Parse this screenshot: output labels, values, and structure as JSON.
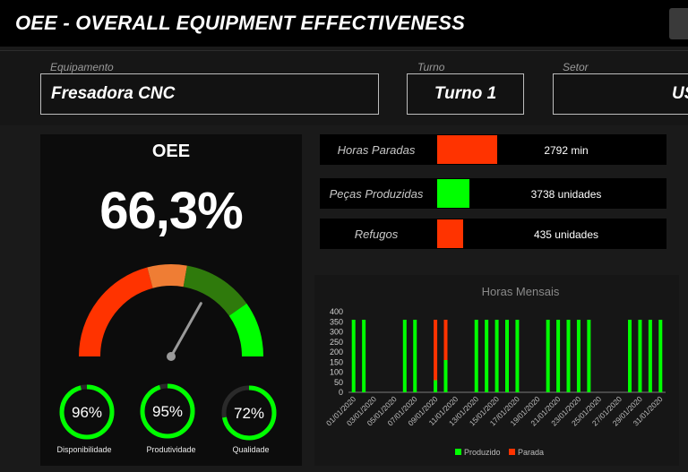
{
  "header": {
    "title": "OEE - OVERALL EQUIPMENT EFFECTIVENESS"
  },
  "filters": {
    "equipamento": {
      "label": "Equipamento",
      "value": "Fresadora CNC"
    },
    "turno": {
      "label": "Turno",
      "value": "Turno 1"
    },
    "setor": {
      "label": "Setor",
      "value": "US"
    }
  },
  "oee": {
    "title": "OEE",
    "value_text": "66,3%",
    "value": 66.3,
    "gauge_colors": [
      "#ff3300",
      "#ef7d34",
      "#2f7a0c",
      "#00ff00"
    ],
    "rings": [
      {
        "name": "disponibilidade",
        "label": "Disponibilidade",
        "value_text": "96%",
        "value": 96
      },
      {
        "name": "produtividade",
        "label": "Produtividade",
        "value_text": "95%",
        "value": 95
      },
      {
        "name": "qualidade",
        "label": "Qualidade",
        "value_text": "72%",
        "value": 72
      }
    ],
    "ring_color": "#00ff00"
  },
  "metrics": [
    {
      "name": "horas-paradas",
      "label": "Horas Paradas",
      "value_text": "2792 min",
      "fill": 0.58,
      "color": "#ff3300"
    },
    {
      "name": "pecas-produzidas",
      "label": "Peças Produzidas",
      "value_text": "3738 unidades",
      "fill": 0.31,
      "color": "#00ff00"
    },
    {
      "name": "refugos",
      "label": "Refugos",
      "value_text": "435 unidades",
      "fill": 0.25,
      "color": "#ff3300"
    }
  ],
  "chart_data": {
    "type": "bar",
    "stacked": true,
    "title": "Horas Mensais",
    "ylim": [
      0,
      400
    ],
    "yticks": [
      0,
      50,
      100,
      150,
      200,
      250,
      300,
      350,
      400
    ],
    "categories": [
      "01/01/2020",
      "02/01/2020",
      "03/01/2020",
      "04/01/2020",
      "05/01/2020",
      "06/01/2020",
      "07/01/2020",
      "08/01/2020",
      "09/01/2020",
      "10/01/2020",
      "11/01/2020",
      "12/01/2020",
      "13/01/2020",
      "14/01/2020",
      "15/01/2020",
      "16/01/2020",
      "17/01/2020",
      "18/01/2020",
      "19/01/2020",
      "20/01/2020",
      "21/01/2020",
      "22/01/2020",
      "23/01/2020",
      "24/01/2020",
      "25/01/2020",
      "26/01/2020",
      "27/01/2020",
      "28/01/2020",
      "29/01/2020",
      "30/01/2020",
      "31/01/2020"
    ],
    "tick_labels": [
      "01/01/2020",
      "03/01/2020",
      "05/01/2020",
      "07/01/2020",
      "09/01/2020",
      "11/01/2020",
      "13/01/2020",
      "15/01/2020",
      "17/01/2020",
      "19/01/2020",
      "21/01/2020",
      "23/01/2020",
      "25/01/2020",
      "27/01/2020",
      "29/01/2020",
      "31/01/2020"
    ],
    "series": [
      {
        "name": "Produzido",
        "color": "#00ff00",
        "values": [
          360,
          360,
          0,
          0,
          0,
          360,
          360,
          0,
          60,
          160,
          0,
          0,
          360,
          360,
          360,
          360,
          360,
          0,
          0,
          360,
          360,
          360,
          360,
          360,
          0,
          0,
          0,
          360,
          360,
          360,
          360
        ]
      },
      {
        "name": "Parada",
        "color": "#ff3300",
        "values": [
          0,
          0,
          0,
          0,
          0,
          0,
          0,
          0,
          300,
          200,
          0,
          0,
          0,
          0,
          0,
          0,
          0,
          0,
          0,
          0,
          0,
          0,
          0,
          0,
          0,
          0,
          0,
          0,
          0,
          0,
          0
        ]
      }
    ],
    "legend": "bottom"
  }
}
